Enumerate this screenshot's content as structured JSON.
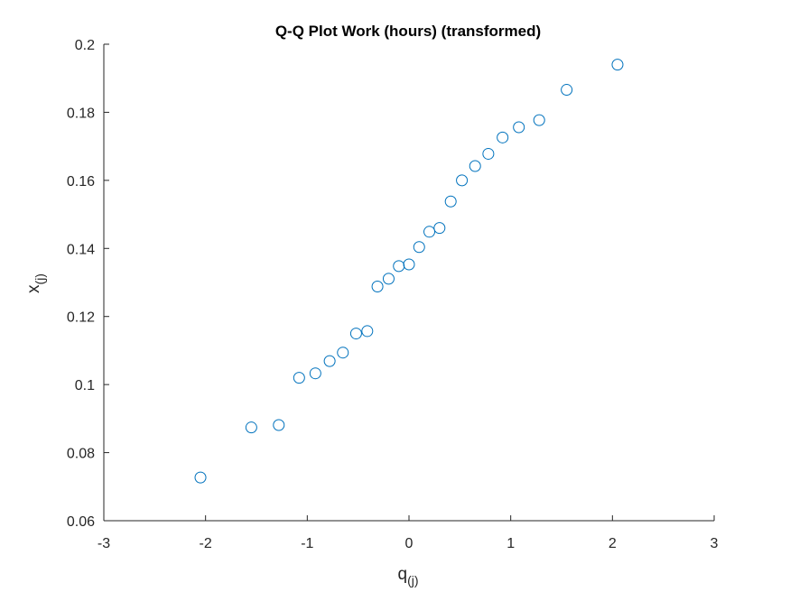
{
  "chart_data": {
    "type": "scatter",
    "title": "Q-Q Plot Work (hours) (transformed)",
    "xlabel": "q",
    "xlabel_subscript": "(j)",
    "ylabel": "x",
    "ylabel_subscript": "(j)",
    "xlim": [
      -3,
      3
    ],
    "ylim": [
      0.06,
      0.2
    ],
    "xticks": [
      -3,
      -2,
      -1,
      0,
      1,
      2,
      3
    ],
    "xtick_labels": [
      "-3",
      "-2",
      "-1",
      "0",
      "1",
      "2",
      "3"
    ],
    "yticks": [
      0.06,
      0.08,
      0.1,
      0.12,
      0.14,
      0.16,
      0.18,
      0.2
    ],
    "ytick_labels": [
      "0.06",
      "0.08",
      "0.1",
      "0.12",
      "0.14",
      "0.16",
      "0.18",
      "0.2"
    ],
    "grid": false,
    "marker": "circle-open",
    "color": "#0072BD",
    "series": [
      {
        "x": [
          -2.05,
          -1.55,
          -1.28,
          -1.08,
          -0.92,
          -0.78,
          -0.65,
          -0.52,
          -0.41,
          -0.31,
          -0.2,
          -0.1,
          0.0,
          0.1,
          0.2,
          0.3,
          0.41,
          0.52,
          0.65,
          0.78,
          0.92,
          1.08,
          1.28,
          1.55,
          2.05
        ],
        "y": [
          0.0727,
          0.0874,
          0.0881,
          0.102,
          0.1033,
          0.1069,
          0.1094,
          0.115,
          0.1157,
          0.1288,
          0.1311,
          0.1348,
          0.1353,
          0.1404,
          0.1449,
          0.146,
          0.1538,
          0.16,
          0.1642,
          0.1678,
          0.1726,
          0.1756,
          0.1777,
          0.1866,
          0.194
        ]
      }
    ]
  }
}
